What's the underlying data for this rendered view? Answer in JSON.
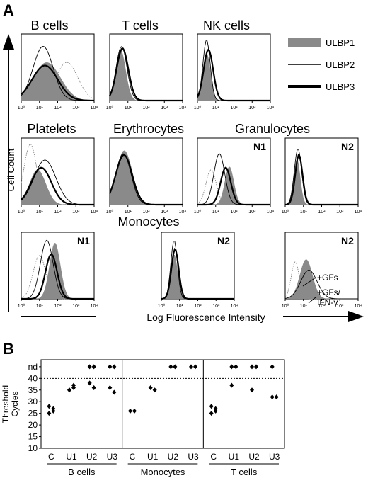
{
  "panel_a": {
    "label": "A",
    "y_axis_label": "Cell Count",
    "x_axis_label": "Log Fluorescence Intensity",
    "legend": [
      {
        "name": "ULBP1",
        "style": "filled",
        "color": "#8a8a8a"
      },
      {
        "name": "ULBP2",
        "style": "thin",
        "color": "#000000"
      },
      {
        "name": "ULBP3",
        "style": "thick",
        "color": "#000000"
      }
    ],
    "tick_labels": [
      "10⁰",
      "10¹",
      "10²",
      "10³",
      "10⁴"
    ],
    "histograms": [
      {
        "title": "B cells",
        "tag": "",
        "ctrl": [
          2.5,
          0.6,
          60
        ],
        "curves": [
          {
            "type": "filled",
            "mu": 1.4,
            "s": 0.75,
            "h": 60
          },
          {
            "type": "thin",
            "mu": 1.2,
            "s": 0.55,
            "h": 85
          },
          {
            "type": "thick",
            "mu": 1.3,
            "s": 0.7,
            "h": 55
          }
        ]
      },
      {
        "title": "T cells",
        "tag": "",
        "ctrl": null,
        "curves": [
          {
            "type": "filled",
            "mu": 0.6,
            "s": 0.28,
            "h": 80
          },
          {
            "type": "thin",
            "mu": 0.65,
            "s": 0.3,
            "h": 85
          },
          {
            "type": "thick",
            "mu": 0.7,
            "s": 0.32,
            "h": 82
          }
        ]
      },
      {
        "title": "NK cells",
        "tag": "",
        "ctrl": null,
        "curves": [
          {
            "type": "filled",
            "mu": 0.5,
            "s": 0.22,
            "h": 75
          },
          {
            "type": "thin",
            "mu": 0.5,
            "s": 0.2,
            "h": 95
          },
          {
            "type": "thick",
            "mu": 0.6,
            "s": 0.26,
            "h": 80
          }
        ]
      },
      {
        "title": "Platelets",
        "tag": "",
        "ctrl": [
          0.5,
          0.35,
          95
        ],
        "curves": [
          {
            "type": "filled",
            "mu": 0.9,
            "s": 0.45,
            "h": 55
          },
          {
            "type": "thin",
            "mu": 1.3,
            "s": 0.6,
            "h": 70
          },
          {
            "type": "thick",
            "mu": 1.1,
            "s": 0.55,
            "h": 58
          }
        ]
      },
      {
        "title": "Erythrocytes",
        "tag": "",
        "ctrl": null,
        "curves": [
          {
            "type": "filled",
            "mu": 0.8,
            "s": 0.45,
            "h": 85
          },
          {
            "type": "thin",
            "mu": 0.75,
            "s": 0.42,
            "h": 80
          },
          {
            "type": "thick",
            "mu": 0.78,
            "s": 0.45,
            "h": 78
          }
        ]
      },
      {
        "title": "Granulocytes",
        "tag": "N1",
        "ctrl": [
          0.75,
          0.28,
          55
        ],
        "curves": [
          {
            "type": "filled",
            "mu": 1.75,
            "s": 0.25,
            "h": 60
          },
          {
            "type": "thin",
            "mu": 1.2,
            "s": 0.3,
            "h": 80
          },
          {
            "type": "thick",
            "mu": 1.55,
            "s": 0.28,
            "h": 58
          }
        ]
      },
      {
        "title": "",
        "tag": "N2",
        "ctrl": null,
        "curves": [
          {
            "type": "filled",
            "mu": 0.65,
            "s": 0.18,
            "h": 72
          },
          {
            "type": "thin",
            "mu": 0.7,
            "s": 0.2,
            "h": 88
          },
          {
            "type": "thick",
            "mu": 0.75,
            "s": 0.2,
            "h": 78
          }
        ]
      },
      {
        "title": "Monocytes",
        "tag": "N1",
        "ctrl": [
          1.0,
          0.35,
          68
        ],
        "curves": [
          {
            "type": "filled",
            "mu": 1.85,
            "s": 0.3,
            "h": 88
          },
          {
            "type": "thin",
            "mu": 1.4,
            "s": 0.35,
            "h": 92
          },
          {
            "type": "thick",
            "mu": 1.65,
            "s": 0.32,
            "h": 70
          }
        ]
      },
      {
        "title": "",
        "tag": "N2",
        "ctrl": null,
        "curves": [
          {
            "type": "filled",
            "mu": 0.7,
            "s": 0.2,
            "h": 70
          },
          {
            "type": "thin",
            "mu": 0.7,
            "s": 0.18,
            "h": 92
          },
          {
            "type": "thick",
            "mu": 0.75,
            "s": 0.2,
            "h": 78
          }
        ]
      },
      {
        "title": "",
        "tag": "N2",
        "ctrl": [
          0.55,
          0.22,
          58
        ],
        "curves": [
          {
            "type": "filled",
            "mu": 1.15,
            "s": 0.35,
            "h": 62
          },
          {
            "type": "thin",
            "mu": 1.3,
            "s": 0.45,
            "h": 45
          }
        ]
      }
    ],
    "annotations": {
      "gfs": "+GFs",
      "gfs_ifn_1": "+GFs/",
      "gfs_ifn_2": "IFN-γ"
    }
  },
  "chart_data": {
    "type": "scatter",
    "panel_label": "B",
    "ylabel_lines": [
      "Threshold",
      "Cycles"
    ],
    "y_ticks": [
      10,
      15,
      20,
      25,
      30,
      35,
      40
    ],
    "nd_label": "nd",
    "nd_value": 45,
    "threshold_line": 40,
    "ylim": [
      10,
      48
    ],
    "groups": [
      {
        "name": "B cells",
        "categories": [
          "C",
          "U1",
          "U2",
          "U3"
        ],
        "points": [
          [
            [
              28,
              27,
              25,
              26
            ]
          ],
          [
            [
              35,
              36,
              35,
              37
            ]
          ],
          [
            [
              45,
              45,
              38,
              36
            ]
          ],
          [
            [
              45,
              45,
              36,
              34
            ]
          ]
        ]
      },
      {
        "name": "Monocytes",
        "categories": [
          "C",
          "U1",
          "U2",
          "U3"
        ],
        "points": [
          [
            [
              26,
              26
            ]
          ],
          [
            [
              36,
              35
            ]
          ],
          [
            [
              45,
              45
            ]
          ],
          [
            [
              45,
              45
            ]
          ]
        ]
      },
      {
        "name": "T cells",
        "categories": [
          "C",
          "U1",
          "U2",
          "U3"
        ],
        "points": [
          [
            [
              28,
              27,
              25,
              26
            ]
          ],
          [
            [
              45,
              45,
              37
            ]
          ],
          [
            [
              45,
              45,
              35
            ]
          ],
          [
            [
              45,
              32,
              32
            ]
          ]
        ]
      }
    ]
  }
}
